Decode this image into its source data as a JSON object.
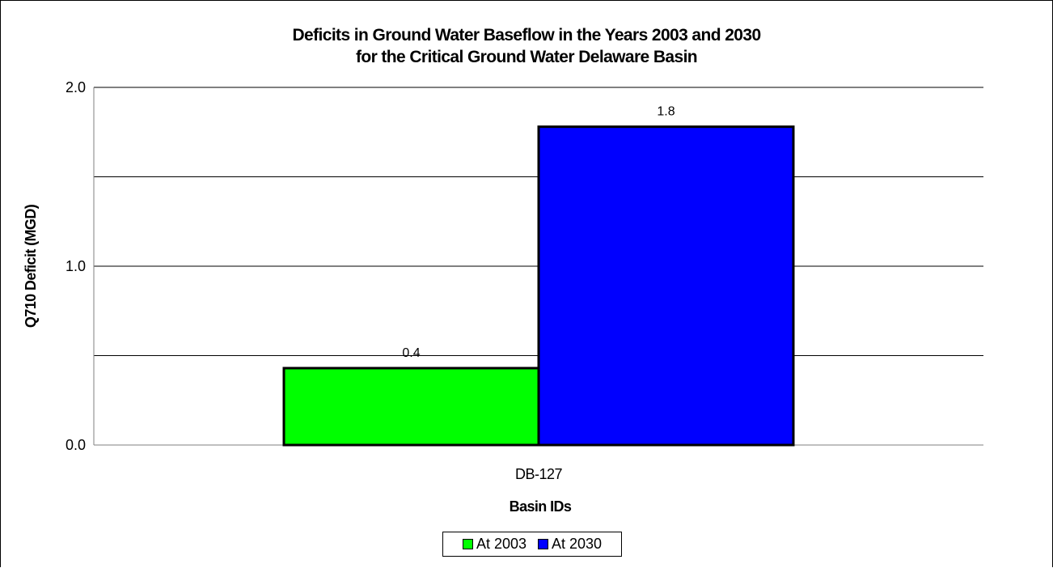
{
  "chart_data": {
    "type": "bar",
    "title_lines": [
      "Deficits in Ground Water Baseflow in the Years 2003 and 2030",
      "for the Critical Ground Water Delaware Basin"
    ],
    "xlabel": "Basin IDs",
    "ylabel": "Q710 Deficit (MGD)",
    "categories": [
      "DB-127"
    ],
    "series": [
      {
        "name": "At 2003",
        "values": [
          0.43
        ],
        "data_labels": [
          "0.4"
        ],
        "color": "#00ff00"
      },
      {
        "name": "At 2030",
        "values": [
          1.78
        ],
        "data_labels": [
          "1.8"
        ],
        "color": "#0000ff"
      }
    ],
    "ylim": [
      0,
      2.0
    ],
    "yticks": [
      0.0,
      0.5,
      1.0,
      1.5,
      2.0
    ],
    "ytick_labels": [
      "0.0",
      "",
      "1.0",
      "",
      "2.0"
    ],
    "grid": true,
    "legend_position": "bottom"
  }
}
